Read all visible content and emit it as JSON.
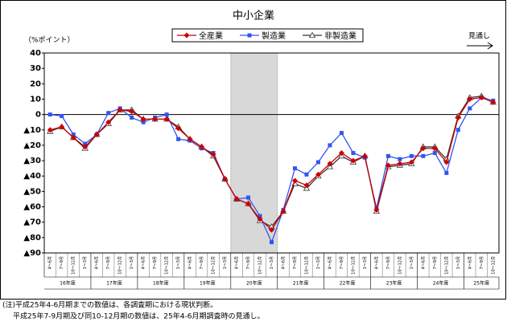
{
  "chart_data": {
    "type": "line",
    "title": "中小企業",
    "y_label": "（%ポイント）",
    "forecast_label": "見通し",
    "notes": [
      "(注)平成25年4-6月期までの数値は、各調査期における現状判断。",
      "平成25年7-9月期及び同10-12月期の数値は、25年4-6月期調査時の見通し。"
    ],
    "categories": [
      "4～6月",
      "7～9月",
      "10～12月",
      "1～3月",
      "4～6月",
      "7～9月",
      "10～12月",
      "1～3月",
      "4～6月",
      "7～9月",
      "10～12月",
      "1～3月",
      "4～6月",
      "7～9月",
      "10～12月",
      "1～3月",
      "4～6月",
      "7～9月",
      "10～12月",
      "1～3月",
      "4～6月",
      "7～9月",
      "10～12月",
      "1～3月",
      "4～6月",
      "7～9月",
      "10～12月",
      "1～3月",
      "4～6月",
      "7～9月",
      "10～12月",
      "1～3月",
      "4～6月",
      "7～9月",
      "10～12月",
      "1～3月",
      "4～6月",
      "7～9月",
      "10～12月"
    ],
    "year_groups": [
      "16年度",
      "17年度",
      "18年度",
      "19年度",
      "20年度",
      "21年度",
      "22年度",
      "23年度",
      "24年度",
      "25年度"
    ],
    "ylim": [
      -90,
      40
    ],
    "yticks": [
      40,
      30,
      20,
      10,
      0,
      {
        "value": -10,
        "label": "▲10"
      },
      {
        "value": -20,
        "label": "▲20"
      },
      {
        "value": -30,
        "label": "▲30"
      },
      {
        "value": -40,
        "label": "▲40"
      },
      {
        "value": -50,
        "label": "▲50"
      },
      {
        "value": -60,
        "label": "▲60"
      },
      {
        "value": -70,
        "label": "▲70"
      },
      {
        "value": -80,
        "label": "▲80"
      },
      {
        "value": -90,
        "label": "▲90"
      }
    ],
    "grid": false,
    "series": [
      {
        "name": "全産業",
        "color": "#cc0000",
        "marker": "diamond",
        "values": [
          -10,
          -8,
          -15,
          -21,
          -13,
          -5,
          3,
          2,
          -3,
          -3,
          -3,
          -9,
          -16,
          -21,
          -26,
          -42,
          -55,
          -58,
          -68,
          -75,
          -63,
          -43,
          -46,
          -39,
          -32,
          -25,
          -30,
          -27,
          -62,
          -33,
          -32,
          -31,
          -22,
          -22,
          -31,
          -2,
          10,
          11,
          8
        ]
      },
      {
        "name": "製造業",
        "color": "#3355ee",
        "marker": "square",
        "values": [
          0,
          -1,
          -13,
          -19,
          -13,
          1,
          4,
          -2,
          -5,
          -2,
          0,
          -16,
          -17,
          -22,
          -25,
          -42,
          -55,
          -54,
          -66,
          -83,
          -62,
          -35,
          -39,
          -31,
          -20,
          -12,
          -25,
          -28,
          -61,
          -27,
          -29,
          -27,
          -27,
          -25,
          -38,
          -10,
          4,
          11,
          9
        ]
      },
      {
        "name": "非製造業",
        "color": "#333333",
        "marker": "triangle",
        "values": [
          -11,
          -8,
          -15,
          -22,
          -13,
          -6,
          3,
          3,
          -3,
          -3,
          -3,
          -8,
          -16,
          -21,
          -27,
          -42,
          -55,
          -58,
          -69,
          -73,
          -63,
          -45,
          -48,
          -40,
          -34,
          -27,
          -31,
          -27,
          -63,
          -34,
          -33,
          -32,
          -21,
          -21,
          -29,
          -1,
          11,
          12,
          8
        ]
      }
    ]
  }
}
